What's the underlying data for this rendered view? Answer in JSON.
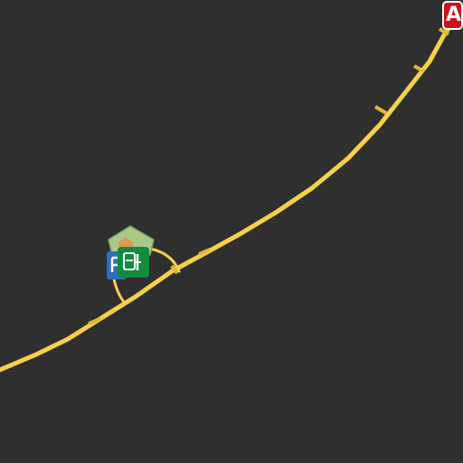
{
  "map": {
    "background_color": "#2f2f2f",
    "road_color": "#f5d04b",
    "route_marker": {
      "label": "A",
      "color": "#d0101a",
      "border_color": "#ffffff"
    },
    "pois": [
      {
        "name": "home-icon",
        "color": "#a9c98a"
      },
      {
        "name": "parking-icon",
        "color": "#2a6fc0"
      },
      {
        "name": "transit-station-icon",
        "color": "#138a3f"
      }
    ]
  }
}
